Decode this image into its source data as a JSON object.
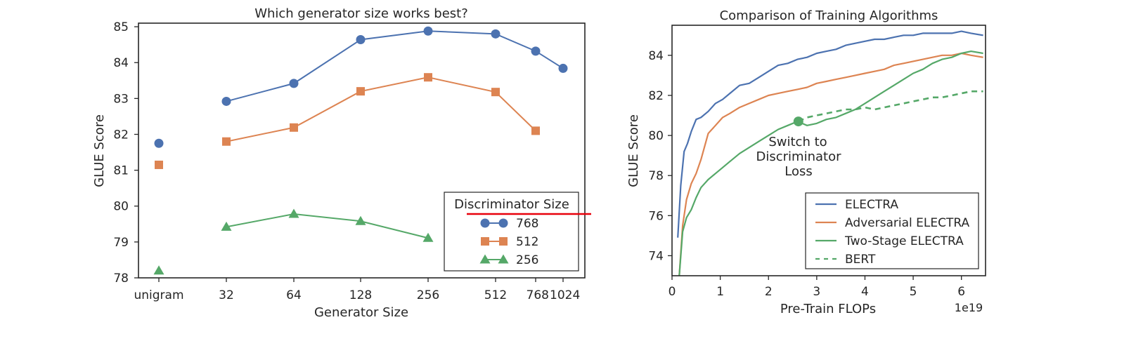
{
  "chart_data": [
    {
      "type": "line",
      "title": "Which generator size works best?",
      "xlabel": "Generator Size",
      "ylabel": "GLUE Score",
      "ylim": [
        78,
        85.1
      ],
      "yticks": [
        78,
        79,
        80,
        81,
        82,
        83,
        84,
        85
      ],
      "categories": [
        "unigram",
        "32",
        "64",
        "128",
        "256",
        "512",
        "768",
        "1024"
      ],
      "legend": {
        "title": "Discriminator Size",
        "placement": "lower-right"
      },
      "series": [
        {
          "name": "768",
          "color": "#4c72b0",
          "marker": "circle",
          "values": [
            81.75,
            82.92,
            83.42,
            84.64,
            84.88,
            84.8,
            84.32,
            83.84
          ]
        },
        {
          "name": "512",
          "color": "#dd8452",
          "marker": "square",
          "values": [
            81.15,
            81.8,
            82.19,
            83.2,
            83.59,
            83.18,
            82.1,
            null
          ]
        },
        {
          "name": "256",
          "color": "#55a868",
          "marker": "triangle",
          "values": [
            78.2,
            79.42,
            79.78,
            79.58,
            79.11,
            null,
            null,
            null
          ]
        }
      ],
      "grid": false,
      "overlay_line_color": "#e8000b"
    },
    {
      "type": "line",
      "title": "Comparison of Training Algorithms",
      "xlabel": "Pre-Train FLOPs",
      "ylabel": "GLUE Score",
      "x_scale_label": "1e19",
      "xlim": [
        0,
        6.5
      ],
      "ylim": [
        73,
        85.5
      ],
      "xticks": [
        0,
        1,
        2,
        3,
        4,
        5,
        6
      ],
      "yticks": [
        74,
        76,
        78,
        80,
        82,
        84
      ],
      "legend": {
        "placement": "lower-right"
      },
      "annotation": {
        "text": [
          "Switch to",
          "Discriminator",
          "Loss"
        ],
        "x": 2.62,
        "y": 80.7
      },
      "grid": false,
      "series": [
        {
          "name": "ELECTRA",
          "color": "#4c72b0",
          "dash": "solid",
          "x": [
            0.12,
            0.18,
            0.25,
            0.32,
            0.4,
            0.5,
            0.6,
            0.75,
            0.9,
            1.05,
            1.2,
            1.4,
            1.6,
            1.8,
            2.0,
            2.2,
            2.4,
            2.6,
            2.8,
            3.0,
            3.2,
            3.4,
            3.6,
            3.8,
            4.0,
            4.2,
            4.4,
            4.6,
            4.8,
            5.0,
            5.2,
            5.4,
            5.6,
            5.8,
            6.0,
            6.2,
            6.45
          ],
          "y": [
            74.9,
            77.5,
            79.2,
            79.6,
            80.2,
            80.8,
            80.9,
            81.2,
            81.6,
            81.8,
            82.1,
            82.5,
            82.6,
            82.9,
            83.2,
            83.5,
            83.6,
            83.8,
            83.9,
            84.1,
            84.2,
            84.3,
            84.5,
            84.6,
            84.7,
            84.8,
            84.8,
            84.9,
            85.0,
            85.0,
            85.1,
            85.1,
            85.1,
            85.1,
            85.2,
            85.1,
            85.0
          ]
        },
        {
          "name": "Adversarial ELECTRA",
          "color": "#dd8452",
          "dash": "solid",
          "x": [
            0.15,
            0.22,
            0.3,
            0.4,
            0.5,
            0.6,
            0.75,
            0.9,
            1.05,
            1.2,
            1.4,
            1.6,
            1.8,
            2.0,
            2.2,
            2.4,
            2.6,
            2.8,
            3.0,
            3.2,
            3.4,
            3.6,
            3.8,
            4.0,
            4.2,
            4.4,
            4.6,
            4.8,
            5.0,
            5.2,
            5.4,
            5.6,
            5.8,
            6.0,
            6.2,
            6.45
          ],
          "y": [
            73.0,
            75.5,
            76.8,
            77.6,
            78.1,
            78.8,
            80.1,
            80.5,
            80.9,
            81.1,
            81.4,
            81.6,
            81.8,
            82.0,
            82.1,
            82.2,
            82.3,
            82.4,
            82.6,
            82.7,
            82.8,
            82.9,
            83.0,
            83.1,
            83.2,
            83.3,
            83.5,
            83.6,
            83.7,
            83.8,
            83.9,
            84.0,
            84.0,
            84.1,
            84.0,
            83.9
          ]
        },
        {
          "name": "Two-Stage ELECTRA",
          "color": "#55a868",
          "dash": "solid",
          "x": [
            0.15,
            0.22,
            0.3,
            0.4,
            0.5,
            0.6,
            0.75,
            0.9,
            1.05,
            1.2,
            1.4,
            1.6,
            1.8,
            2.0,
            2.2,
            2.4,
            2.6,
            2.8,
            3.0,
            3.2,
            3.4,
            3.6,
            3.8,
            4.0,
            4.2,
            4.4,
            4.6,
            4.8,
            5.0,
            5.2,
            5.4,
            5.6,
            5.8,
            6.0,
            6.2,
            6.45
          ],
          "y": [
            73.0,
            75.2,
            75.9,
            76.3,
            76.9,
            77.4,
            77.8,
            78.1,
            78.4,
            78.7,
            79.1,
            79.4,
            79.7,
            80.0,
            80.3,
            80.5,
            80.7,
            80.5,
            80.6,
            80.8,
            80.9,
            81.1,
            81.3,
            81.6,
            81.9,
            82.2,
            82.5,
            82.8,
            83.1,
            83.3,
            83.6,
            83.8,
            83.9,
            84.1,
            84.2,
            84.1
          ]
        },
        {
          "name": "BERT",
          "color": "#55a868",
          "dash": "dashed",
          "x": [
            2.62,
            2.8,
            3.0,
            3.2,
            3.4,
            3.6,
            3.8,
            4.0,
            4.2,
            4.4,
            4.6,
            4.8,
            5.0,
            5.2,
            5.4,
            5.6,
            5.8,
            6.0,
            6.2,
            6.45
          ],
          "y": [
            80.7,
            80.9,
            81.0,
            81.1,
            81.2,
            81.3,
            81.3,
            81.4,
            81.3,
            81.4,
            81.5,
            81.6,
            81.7,
            81.8,
            81.9,
            81.9,
            82.0,
            82.1,
            82.2,
            82.2
          ]
        }
      ]
    }
  ]
}
